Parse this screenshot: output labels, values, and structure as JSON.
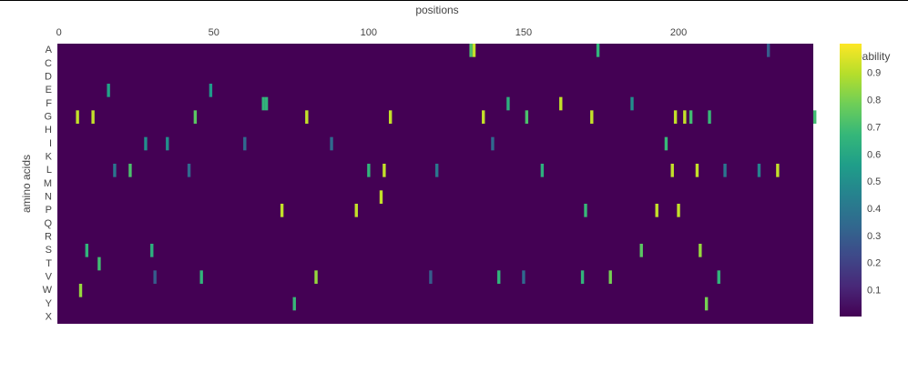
{
  "chart_data": {
    "type": "heatmap",
    "x_title": "positions",
    "y_title": "amino acids",
    "colorbar_title": "probability",
    "categories": [
      "A",
      "C",
      "D",
      "E",
      "F",
      "G",
      "H",
      "I",
      "K",
      "L",
      "M",
      "N",
      "P",
      "Q",
      "R",
      "S",
      "T",
      "V",
      "W",
      "Y",
      "X"
    ],
    "xlim": [
      -0.5,
      243.5
    ],
    "xticks": [
      0,
      50,
      100,
      150,
      200
    ],
    "zlim": [
      0.005,
      1.01
    ],
    "zticks": [
      0.1,
      0.2,
      0.3,
      0.4,
      0.5,
      0.6,
      0.7,
      0.8,
      0.9
    ],
    "colorscale": [
      "#440154",
      "#482878",
      "#3e4989",
      "#31688e",
      "#26828e",
      "#1f9e89",
      "#35b779",
      "#6ece58",
      "#b5de2b",
      "#fde725"
    ],
    "x": [
      6,
      11,
      44,
      80,
      107,
      137,
      151,
      172,
      199,
      202,
      204,
      210,
      244,
      133,
      134,
      174,
      16,
      49,
      66,
      67,
      145,
      162,
      185,
      28,
      35,
      196,
      23,
      100,
      105,
      198,
      206,
      232,
      156,
      104,
      72,
      96,
      170,
      193,
      200,
      9,
      30,
      188,
      207,
      13,
      46,
      83,
      142,
      169,
      178,
      213,
      7,
      76,
      209,
      18,
      42,
      122,
      215,
      226,
      60,
      88,
      140,
      31,
      120,
      150,
      229
    ],
    "y": [
      "G",
      "G",
      "G",
      "G",
      "G",
      "G",
      "G",
      "G",
      "G",
      "G",
      "G",
      "G",
      "G",
      "A",
      "A",
      "A",
      "E",
      "E",
      "F",
      "F",
      "F",
      "F",
      "F",
      "I",
      "I",
      "I",
      "L",
      "L",
      "L",
      "L",
      "L",
      "L",
      "L",
      "N",
      "P",
      "P",
      "P",
      "P",
      "P",
      "S",
      "S",
      "S",
      "S",
      "T",
      "V",
      "V",
      "V",
      "V",
      "V",
      "V",
      "W",
      "Y",
      "Y",
      "L",
      "L",
      "L",
      "L",
      "L",
      "I",
      "I",
      "I",
      "V",
      "V",
      "V",
      "A"
    ],
    "z": [
      0.92,
      0.92,
      0.75,
      0.92,
      0.92,
      0.92,
      0.72,
      0.92,
      0.92,
      0.92,
      0.7,
      0.68,
      0.7,
      0.72,
      0.92,
      0.66,
      0.58,
      0.55,
      0.66,
      0.66,
      0.64,
      0.92,
      0.5,
      0.5,
      0.5,
      0.68,
      0.72,
      0.66,
      0.92,
      0.92,
      0.92,
      0.92,
      0.64,
      0.92,
      0.92,
      0.92,
      0.68,
      0.92,
      0.92,
      0.66,
      0.64,
      0.75,
      0.85,
      0.7,
      0.66,
      0.85,
      0.66,
      0.66,
      0.8,
      0.66,
      0.85,
      0.68,
      0.8,
      0.4,
      0.35,
      0.4,
      0.4,
      0.45,
      0.35,
      0.35,
      0.35,
      0.3,
      0.3,
      0.35,
      0.3
    ]
  }
}
